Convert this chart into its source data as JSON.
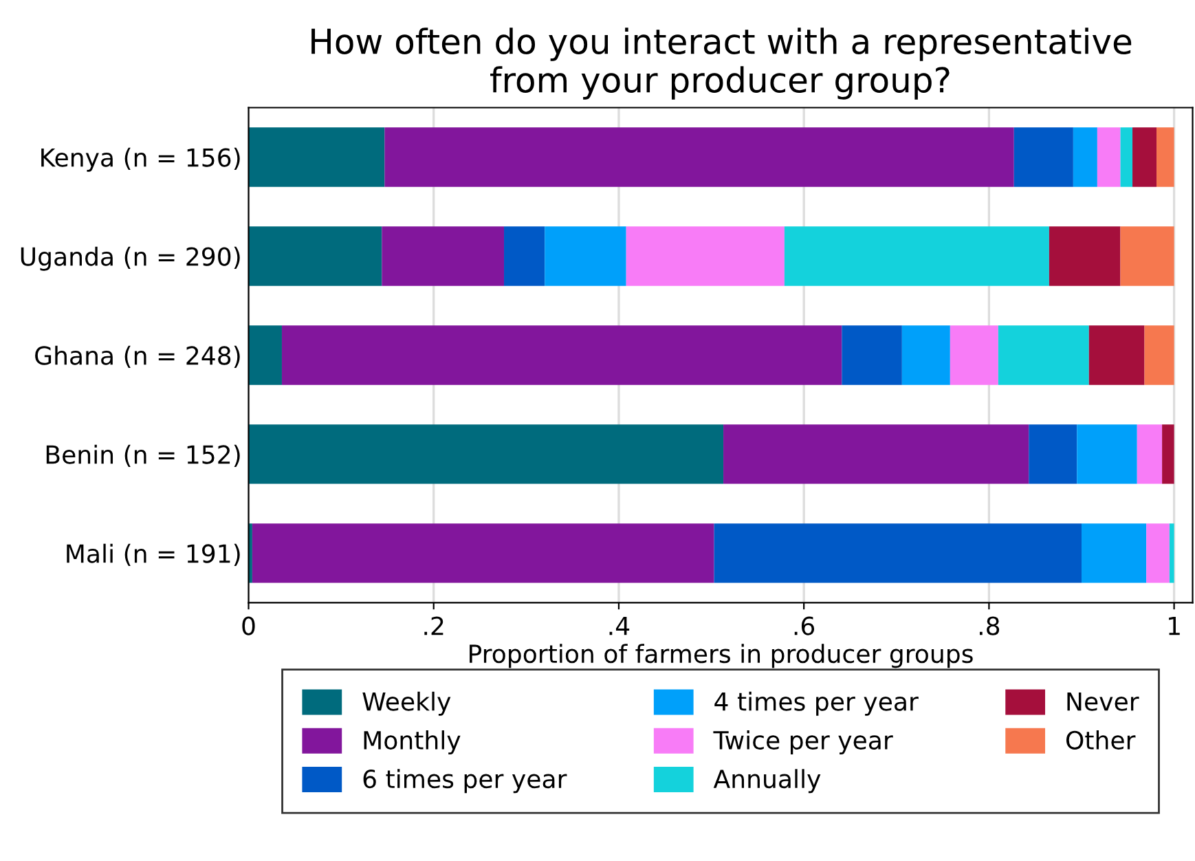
{
  "chart_data": {
    "type": "bar",
    "orientation": "horizontal",
    "stacked": true,
    "title": "How often do you interact with a representative\nfrom your producer group?",
    "xlabel": "Proportion of farmers in producer groups",
    "categories": [
      "Kenya (n = 156)",
      "Uganda (n = 290)",
      "Ghana (n = 248)",
      "Benin (n = 152)",
      "Mali (n = 191)"
    ],
    "series": [
      {
        "name": "Weekly",
        "color": "#006b7d",
        "values": [
          0.147,
          0.144,
          0.036,
          0.513,
          0.004
        ]
      },
      {
        "name": "Monthly",
        "color": "#82169c",
        "values": [
          0.68,
          0.132,
          0.605,
          0.33,
          0.499
        ]
      },
      {
        "name": "6 times per year",
        "color": "#0059c6",
        "values": [
          0.064,
          0.044,
          0.065,
          0.052,
          0.397
        ]
      },
      {
        "name": "4 times per year",
        "color": "#00a0fa",
        "values": [
          0.026,
          0.088,
          0.052,
          0.065,
          0.07
        ]
      },
      {
        "name": "Twice per year",
        "color": "#f87cf7",
        "values": [
          0.025,
          0.171,
          0.052,
          0.027,
          0.025
        ]
      },
      {
        "name": "Annually",
        "color": "#14d2dc",
        "values": [
          0.013,
          0.286,
          0.098,
          0,
          0.005
        ]
      },
      {
        "name": "Never",
        "color": "#a50f3c",
        "values": [
          0.026,
          0.077,
          0.06,
          0.013,
          0
        ]
      },
      {
        "name": "Other",
        "color": "#f6784f",
        "values": [
          0.019,
          0.058,
          0.032,
          0,
          0
        ]
      }
    ],
    "xlim": [
      0,
      1.02
    ],
    "xticks": [
      0,
      {
        "value": 0.2,
        "label": ".2"
      },
      {
        "value": 0.4,
        "label": ".4"
      },
      {
        "value": 0.6,
        "label": ".6"
      },
      {
        "value": 0.8,
        "label": ".8"
      },
      1
    ],
    "grid": "x",
    "legend": "bottom"
  }
}
